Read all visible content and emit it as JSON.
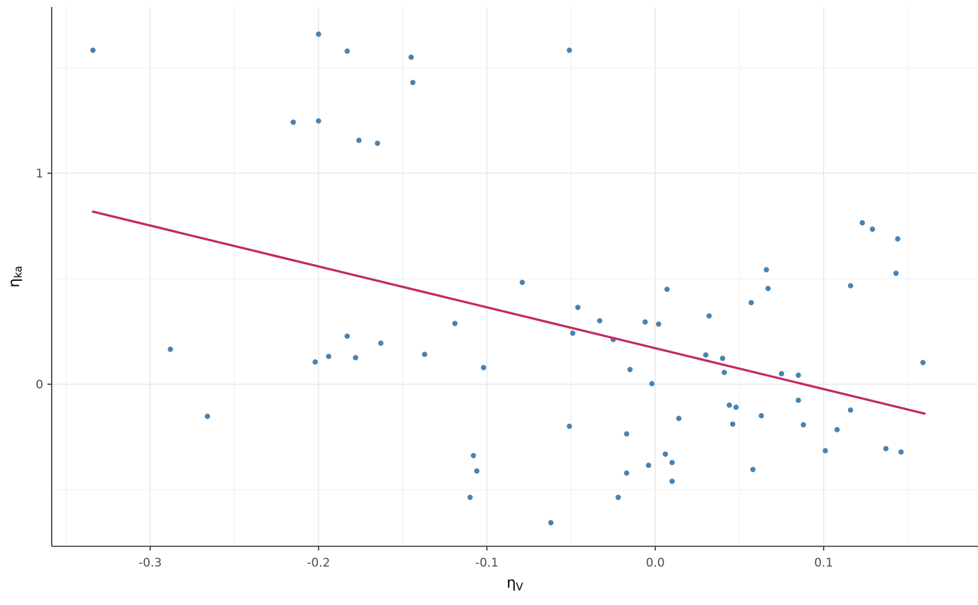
{
  "figure": {
    "background": "#FFFFFF",
    "x_axis_title": {
      "base": "η",
      "sub": "V"
    },
    "y_axis_title": {
      "base": "η",
      "sub": "ka"
    }
  },
  "chart_data": {
    "type": "scatter",
    "title": "",
    "xlabel": "eta_V",
    "ylabel": "eta_ka",
    "legend": "none",
    "grid": "on",
    "xlim": [
      -0.3585,
      0.1917
    ],
    "ylim": [
      -0.768,
      1.788
    ],
    "x_ticks": {
      "values": [
        -0.3,
        -0.2,
        -0.1,
        0.0,
        0.1
      ],
      "labels": [
        "-0.3",
        "-0.2",
        "-0.1",
        "0.0",
        "0.1"
      ]
    },
    "y_ticks": {
      "values": [
        1,
        0
      ],
      "labels": [
        "1",
        "0"
      ]
    },
    "x_minor": [
      -0.35,
      -0.25,
      -0.15,
      -0.05,
      0.05,
      0.15
    ],
    "y_minor": [
      1.5,
      0.5,
      -0.5
    ],
    "points": [
      [
        -0.334,
        1.583
      ],
      [
        -0.2,
        1.659
      ],
      [
        -0.183,
        1.579
      ],
      [
        -0.145,
        1.55
      ],
      [
        -0.144,
        1.43
      ],
      [
        -0.215,
        1.242
      ],
      [
        -0.2,
        1.248
      ],
      [
        -0.176,
        1.156
      ],
      [
        -0.165,
        1.142
      ],
      [
        -0.051,
        1.583
      ],
      [
        0.123,
        0.765
      ],
      [
        0.129,
        0.735
      ],
      [
        0.144,
        0.689
      ],
      [
        0.143,
        0.526
      ],
      [
        -0.079,
        0.483
      ],
      [
        0.007,
        0.45
      ],
      [
        0.066,
        0.543
      ],
      [
        0.067,
        0.454
      ],
      [
        0.057,
        0.387
      ],
      [
        0.116,
        0.467
      ],
      [
        -0.046,
        0.364
      ],
      [
        -0.033,
        0.301
      ],
      [
        -0.049,
        0.242
      ],
      [
        -0.025,
        0.212
      ],
      [
        -0.006,
        0.295
      ],
      [
        0.002,
        0.285
      ],
      [
        0.032,
        0.324
      ],
      [
        -0.119,
        0.288
      ],
      [
        -0.288,
        0.166
      ],
      [
        -0.202,
        0.106
      ],
      [
        -0.194,
        0.132
      ],
      [
        -0.183,
        0.228
      ],
      [
        -0.178,
        0.126
      ],
      [
        -0.163,
        0.195
      ],
      [
        -0.137,
        0.142
      ],
      [
        -0.102,
        0.079
      ],
      [
        0.075,
        0.05
      ],
      [
        0.085,
        0.043
      ],
      [
        0.03,
        0.139
      ],
      [
        0.04,
        0.123
      ],
      [
        -0.015,
        0.07
      ],
      [
        0.041,
        0.056
      ],
      [
        -0.002,
        0.003
      ],
      [
        0.159,
        0.103
      ],
      [
        -0.266,
        -0.152
      ],
      [
        0.044,
        -0.099
      ],
      [
        0.048,
        -0.109
      ],
      [
        0.085,
        -0.076
      ],
      [
        0.063,
        -0.149
      ],
      [
        0.014,
        -0.162
      ],
      [
        0.046,
        -0.189
      ],
      [
        -0.051,
        -0.199
      ],
      [
        0.088,
        -0.192
      ],
      [
        0.116,
        -0.122
      ],
      [
        0.108,
        -0.215
      ],
      [
        -0.017,
        -0.235
      ],
      [
        0.101,
        -0.315
      ],
      [
        0.137,
        -0.305
      ],
      [
        0.146,
        -0.321
      ],
      [
        -0.108,
        -0.338
      ],
      [
        -0.106,
        -0.411
      ],
      [
        -0.11,
        -0.536
      ],
      [
        0.006,
        -0.331
      ],
      [
        0.01,
        -0.371
      ],
      [
        -0.004,
        -0.384
      ],
      [
        -0.017,
        -0.421
      ],
      [
        0.058,
        -0.404
      ],
      [
        0.01,
        -0.46
      ],
      [
        -0.022,
        -0.536
      ],
      [
        -0.062,
        -0.656
      ]
    ],
    "trend_line": {
      "x1": -0.334,
      "y1": 0.818,
      "x2": 0.16,
      "y2": -0.139
    },
    "colors": {
      "point": "#4682B4",
      "trend": "#C22A62",
      "grid_major": "#E2E2E2",
      "grid_minor": "#EDEDED",
      "axis_line": "#333333",
      "tick_label": "#4D4D4D",
      "axis_title": "#000000",
      "background": "#FFFFFF"
    }
  }
}
